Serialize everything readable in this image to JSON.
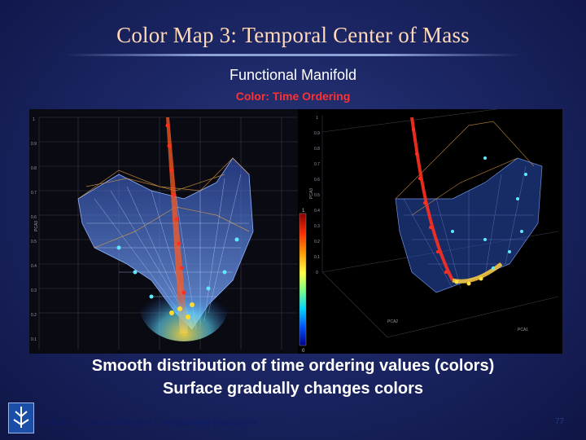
{
  "slide": {
    "title": "Color Map  3: Temporal Center of Mass",
    "subtitle": "Functional Manifold",
    "color_caption": "Color: Time Ordering",
    "caption_line1": "Smooth distribution of time ordering values (colors)",
    "caption_line2": "Surface gradually changes colors",
    "footer": "Functional Connectivity and Time Ordering Framework",
    "page_number": "77"
  },
  "figure": {
    "left_plot": {
      "y_axis_label": "PCA3",
      "y_ticks": [
        "1",
        "0.9",
        "0.8",
        "0.7",
        "0.6",
        "0.5",
        "0.4",
        "0.3",
        "0.2",
        "0.1"
      ]
    },
    "right_plot": {
      "z_axis_label": "PCA3",
      "z_ticks": [
        "1",
        "0.9",
        "0.8",
        "0.7",
        "0.6",
        "0.5",
        "0.4",
        "0.3",
        "0.2",
        "0.1",
        "0"
      ],
      "x_axis_label": "PCA1",
      "y_axis_label": "PCA2"
    },
    "colorbar": {
      "top_label": "1",
      "bottom_label": "0",
      "colors": [
        "#8b0000",
        "#ff2a00",
        "#ff9a00",
        "#ffff40",
        "#7fff7f",
        "#00d8ff",
        "#0050ff",
        "#00008b"
      ]
    }
  }
}
